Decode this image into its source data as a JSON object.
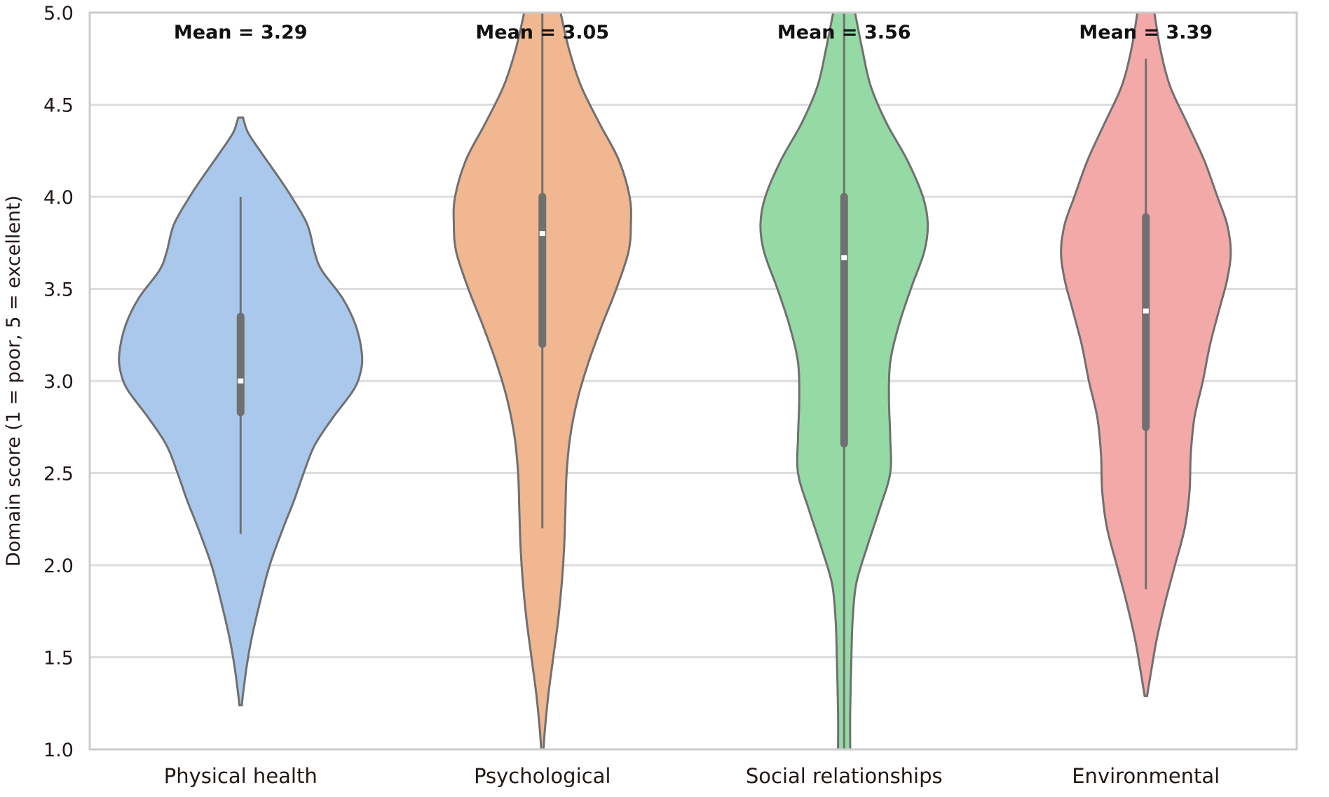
{
  "chart_data": {
    "type": "violin",
    "title": "",
    "xlabel": "",
    "ylabel": "Domain score (1 = poor, 5 = excellent)",
    "ylim": [
      1.0,
      5.0
    ],
    "yticks": [
      "1.0",
      "1.5",
      "2.0",
      "2.5",
      "3.0",
      "3.5",
      "4.0",
      "4.5",
      "5.0"
    ],
    "grid": "horizontal",
    "categories": [
      "Physical health",
      "Psychological",
      "Social relationships",
      "Environmental"
    ],
    "series": [
      {
        "name": "Physical health",
        "color": "#a9c8ec",
        "mean_label": "Mean = 3.29",
        "mean": 3.29,
        "median": 3.0,
        "q1": 2.83,
        "q3": 3.35,
        "whisker_low": 2.17,
        "whisker_high": 4.0,
        "density": [
          [
            4.43,
            0.02
          ],
          [
            4.35,
            0.06
          ],
          [
            4.25,
            0.16
          ],
          [
            4.1,
            0.32
          ],
          [
            4.0,
            0.42
          ],
          [
            3.85,
            0.55
          ],
          [
            3.7,
            0.61
          ],
          [
            3.6,
            0.67
          ],
          [
            3.45,
            0.84
          ],
          [
            3.3,
            0.95
          ],
          [
            3.15,
            1.0
          ],
          [
            3.05,
            0.99
          ],
          [
            2.95,
            0.93
          ],
          [
            2.8,
            0.76
          ],
          [
            2.65,
            0.61
          ],
          [
            2.5,
            0.52
          ],
          [
            2.35,
            0.44
          ],
          [
            2.2,
            0.35
          ],
          [
            2.0,
            0.24
          ],
          [
            1.8,
            0.16
          ],
          [
            1.6,
            0.09
          ],
          [
            1.45,
            0.05
          ],
          [
            1.3,
            0.02
          ],
          [
            1.24,
            0.01
          ]
        ]
      },
      {
        "name": "Psychological",
        "color": "#f0b790",
        "mean_label": "Mean = 3.05",
        "mean": 3.05,
        "median": 3.8,
        "q1": 3.2,
        "q3": 4.0,
        "whisker_low": 2.2,
        "whisker_high": 5.0,
        "density": [
          [
            5.0,
            0.15
          ],
          [
            4.8,
            0.22
          ],
          [
            4.6,
            0.32
          ],
          [
            4.4,
            0.47
          ],
          [
            4.2,
            0.63
          ],
          [
            4.0,
            0.72
          ],
          [
            3.85,
            0.73
          ],
          [
            3.7,
            0.71
          ],
          [
            3.5,
            0.61
          ],
          [
            3.3,
            0.49
          ],
          [
            3.1,
            0.38
          ],
          [
            2.9,
            0.29
          ],
          [
            2.7,
            0.23
          ],
          [
            2.5,
            0.2
          ],
          [
            2.3,
            0.19
          ],
          [
            2.1,
            0.18
          ],
          [
            1.9,
            0.16
          ],
          [
            1.7,
            0.13
          ],
          [
            1.5,
            0.09
          ],
          [
            1.3,
            0.05
          ],
          [
            1.1,
            0.02
          ],
          [
            1.0,
            0.01
          ]
        ]
      },
      {
        "name": "Social relationships",
        "color": "#95d9a4",
        "mean_label": "Mean = 3.56",
        "mean": 3.56,
        "median": 3.67,
        "q1": 2.66,
        "q3": 4.0,
        "whisker_low": 1.0,
        "whisker_high": 5.0,
        "density": [
          [
            5.0,
            0.09
          ],
          [
            4.8,
            0.15
          ],
          [
            4.6,
            0.22
          ],
          [
            4.4,
            0.35
          ],
          [
            4.2,
            0.52
          ],
          [
            4.0,
            0.65
          ],
          [
            3.85,
            0.69
          ],
          [
            3.7,
            0.66
          ],
          [
            3.5,
            0.55
          ],
          [
            3.3,
            0.45
          ],
          [
            3.1,
            0.38
          ],
          [
            2.9,
            0.37
          ],
          [
            2.7,
            0.38
          ],
          [
            2.5,
            0.38
          ],
          [
            2.3,
            0.29
          ],
          [
            2.1,
            0.19
          ],
          [
            1.9,
            0.1
          ],
          [
            1.7,
            0.07
          ],
          [
            1.5,
            0.06
          ],
          [
            1.2,
            0.05
          ],
          [
            1.0,
            0.05
          ]
        ]
      },
      {
        "name": "Environmental",
        "color": "#f2a9a8",
        "mean_label": "Mean = 3.39",
        "mean": 3.39,
        "median": 3.38,
        "q1": 2.75,
        "q3": 3.89,
        "whisker_low": 1.87,
        "whisker_high": 4.75,
        "density": [
          [
            5.0,
            0.07
          ],
          [
            4.8,
            0.12
          ],
          [
            4.6,
            0.2
          ],
          [
            4.4,
            0.34
          ],
          [
            4.2,
            0.48
          ],
          [
            4.0,
            0.59
          ],
          [
            3.85,
            0.67
          ],
          [
            3.7,
            0.7
          ],
          [
            3.55,
            0.67
          ],
          [
            3.4,
            0.61
          ],
          [
            3.2,
            0.53
          ],
          [
            3.0,
            0.47
          ],
          [
            2.8,
            0.4
          ],
          [
            2.6,
            0.37
          ],
          [
            2.4,
            0.36
          ],
          [
            2.2,
            0.32
          ],
          [
            2.0,
            0.24
          ],
          [
            1.8,
            0.16
          ],
          [
            1.6,
            0.09
          ],
          [
            1.45,
            0.05
          ],
          [
            1.29,
            0.01
          ]
        ]
      }
    ]
  }
}
